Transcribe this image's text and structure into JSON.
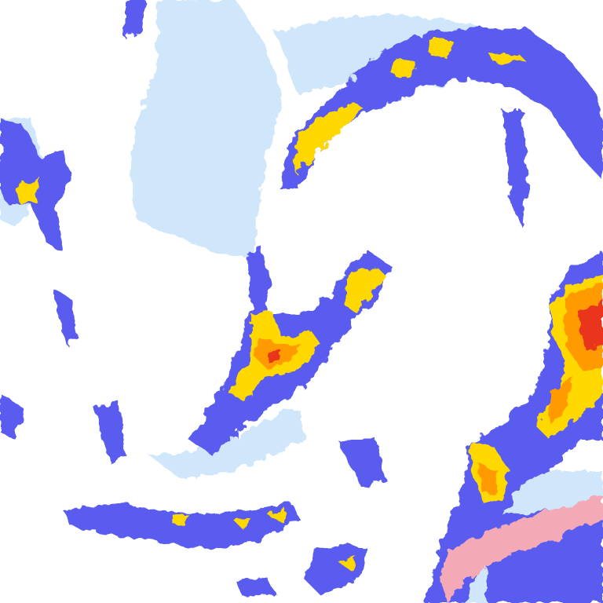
{
  "map": {
    "type": "precipitation-radar",
    "colors": {
      "background": "#ffffff",
      "very_light": "#cfe6fb",
      "light": "#a9cff5",
      "moderate": "#5a5cf0",
      "moderate_dark": "#3a34d8",
      "heavy": "#ffd800",
      "very_heavy": "#ff9a00",
      "intense": "#e8351c",
      "mixed": "#f4a9b6"
    },
    "features": [
      "northern-arc-band",
      "central-spiral-band",
      "eastern-frontal-band",
      "western-scattered-cells",
      "southern-shower-cells",
      "light-precip-northwest"
    ]
  }
}
